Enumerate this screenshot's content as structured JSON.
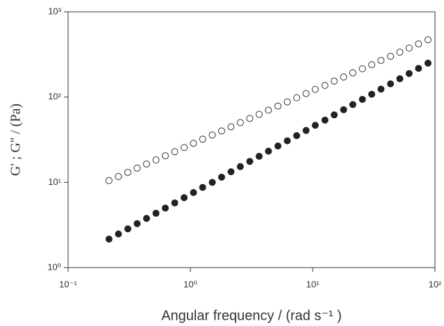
{
  "chart_data": {
    "type": "scatter",
    "x_label": "Angular frequency / (rad s⁻¹ )",
    "y_label": "G' ; G'' / (Pa)",
    "x_scale": "log",
    "y_scale": "log",
    "xlim": [
      0.1,
      100
    ],
    "ylim": [
      1,
      1000
    ],
    "xticks": [
      {
        "value": 0.1,
        "label": "10⁻¹"
      },
      {
        "value": 1,
        "label": "10⁰"
      },
      {
        "value": 10,
        "label": "10¹"
      },
      {
        "value": 100,
        "label": "10²"
      }
    ],
    "yticks": [
      {
        "value": 1,
        "label": "10⁰"
      },
      {
        "value": 10,
        "label": "10¹"
      },
      {
        "value": 100,
        "label": "10²"
      },
      {
        "value": 1000,
        "label": "10³"
      }
    ],
    "x": [
      0.216,
      0.258,
      0.308,
      0.367,
      0.438,
      0.523,
      0.624,
      0.745,
      0.889,
      1.06,
      1.26,
      1.51,
      1.8,
      2.15,
      2.56,
      3.06,
      3.65,
      4.35,
      5.2,
      6.2,
      7.4,
      8.83,
      10.5,
      12.6,
      15.0,
      17.9,
      21.3,
      25.5,
      30.4,
      36.2,
      43.3,
      51.6,
      61.5,
      73.4,
      87.7
    ],
    "series": [
      {
        "color": "#333333",
        "marker": "open",
        "values": [
          10.5,
          11.7,
          13.1,
          14.7,
          16.4,
          18.3,
          20.5,
          22.9,
          25.6,
          28.7,
          32.1,
          35.9,
          40.1,
          44.9,
          50.2,
          56.1,
          62.8,
          70.2,
          78.5,
          87.8,
          98.2,
          110,
          123,
          137,
          154,
          172,
          192,
          215,
          240,
          269,
          301,
          336,
          376,
          421,
          470
        ]
      },
      {
        "color": "#222222",
        "marker": "filled",
        "values": [
          2.16,
          2.48,
          2.85,
          3.28,
          3.78,
          4.34,
          4.99,
          5.74,
          6.61,
          7.59,
          8.73,
          10.0,
          11.5,
          13.3,
          15.3,
          17.6,
          20.2,
          23.2,
          26.7,
          30.7,
          35.3,
          40.6,
          46.7,
          53.7,
          61.8,
          71.1,
          81.7,
          94.0,
          108,
          124,
          143,
          164,
          189,
          217,
          250
        ]
      }
    ]
  }
}
